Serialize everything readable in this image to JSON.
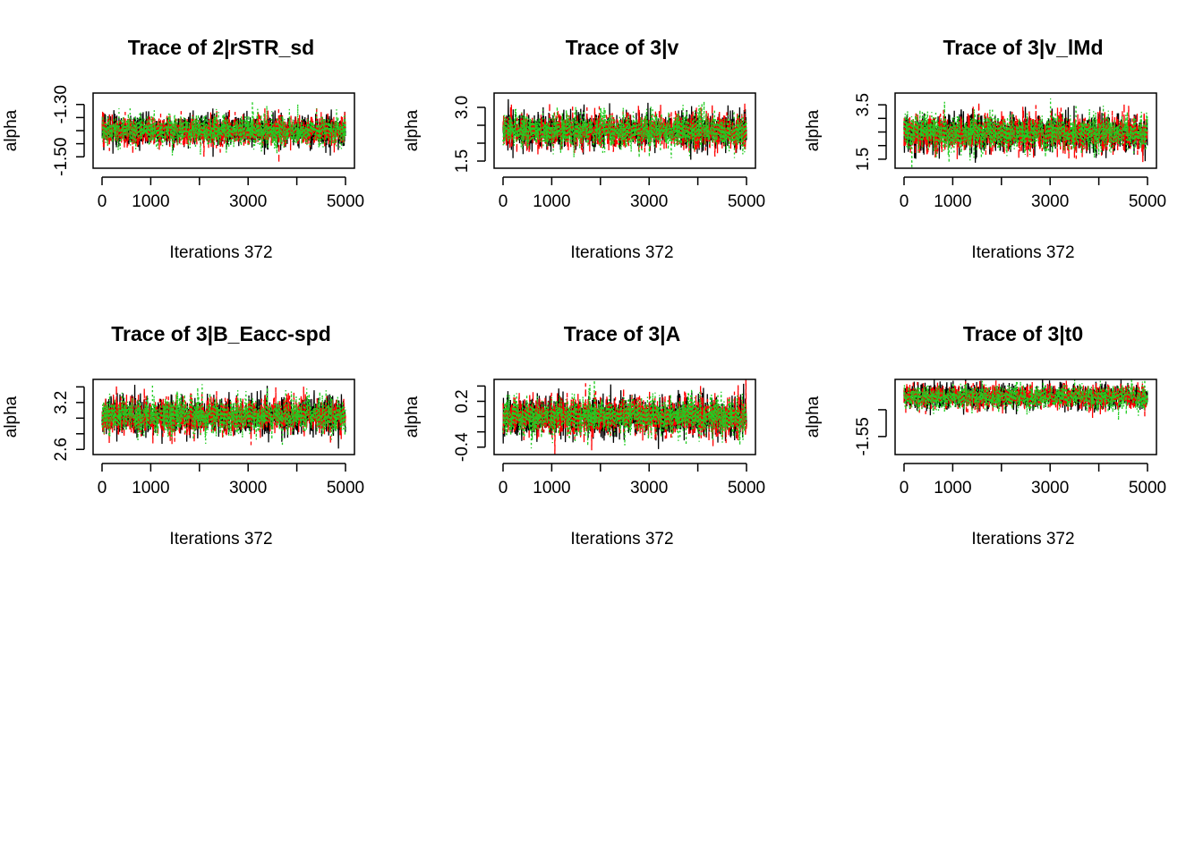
{
  "chart_data": [
    {
      "type": "line",
      "title": "Trace of 2|rSTR_sd",
      "xlabel": "Iterations 372",
      "ylabel": "alpha",
      "xlim": [
        0,
        5000
      ],
      "ylim": [
        -1.53,
        -1.27
      ],
      "x_ticks": [
        "0",
        "1000",
        "3000",
        "5000"
      ],
      "x_tick_values": [
        0,
        1000,
        2000,
        3000,
        4000,
        5000
      ],
      "y_ticks": [
        "-1.50",
        "-1.30"
      ],
      "y_tick_values": [
        -1.5,
        -1.45,
        -1.4,
        -1.35,
        -1.3
      ],
      "n_iterations": 5000,
      "series": [
        {
          "color": "#000000",
          "dash": "solid",
          "mean": -1.4,
          "sd": 0.03
        },
        {
          "color": "#ff0000",
          "dash": "dashed",
          "mean": -1.4,
          "sd": 0.03
        },
        {
          "color": "#22cc22",
          "dash": "dotted",
          "mean": -1.4,
          "sd": 0.03
        }
      ]
    },
    {
      "type": "line",
      "title": "Trace of 3|v",
      "xlabel": "Iterations 372",
      "ylabel": "alpha",
      "xlim": [
        0,
        5000
      ],
      "ylim": [
        1.4,
        3.3
      ],
      "x_ticks": [
        "0",
        "1000",
        "3000",
        "5000"
      ],
      "x_tick_values": [
        0,
        1000,
        2000,
        3000,
        4000,
        5000
      ],
      "y_ticks": [
        "1.5",
        "3.0"
      ],
      "y_tick_values": [
        1.5,
        2.0,
        2.5,
        3.0
      ],
      "n_iterations": 5000,
      "series": [
        {
          "color": "#000000",
          "dash": "solid",
          "mean": 2.35,
          "sd": 0.25
        },
        {
          "color": "#ff0000",
          "dash": "dashed",
          "mean": 2.35,
          "sd": 0.25
        },
        {
          "color": "#22cc22",
          "dash": "dotted",
          "mean": 2.35,
          "sd": 0.25
        }
      ]
    },
    {
      "type": "line",
      "title": "Trace of 3|v_lMd",
      "xlabel": "Iterations 372",
      "ylabel": "alpha",
      "xlim": [
        0,
        5000
      ],
      "ylim": [
        1.3,
        3.8
      ],
      "x_ticks": [
        "0",
        "1000",
        "3000",
        "5000"
      ],
      "x_tick_values": [
        0,
        1000,
        2000,
        3000,
        4000,
        5000
      ],
      "y_ticks": [
        "1.5",
        "3.5"
      ],
      "y_tick_values": [
        1.5,
        2.0,
        2.5,
        3.0,
        3.5
      ],
      "n_iterations": 5000,
      "series": [
        {
          "color": "#000000",
          "dash": "solid",
          "mean": 2.45,
          "sd": 0.35
        },
        {
          "color": "#ff0000",
          "dash": "dashed",
          "mean": 2.45,
          "sd": 0.35
        },
        {
          "color": "#22cc22",
          "dash": "dotted",
          "mean": 2.45,
          "sd": 0.35
        }
      ]
    },
    {
      "type": "line",
      "title": "Trace of 3|B_Eacc-spd",
      "xlabel": "Iterations 372",
      "ylabel": "alpha",
      "xlim": [
        0,
        5000
      ],
      "ylim": [
        2.58,
        3.45
      ],
      "x_ticks": [
        "0",
        "1000",
        "3000",
        "5000"
      ],
      "x_tick_values": [
        0,
        1000,
        2000,
        3000,
        4000,
        5000
      ],
      "y_ticks": [
        "2.6",
        "3.2"
      ],
      "y_tick_values": [
        2.6,
        2.8,
        3.0,
        3.2,
        3.4
      ],
      "n_iterations": 5000,
      "series": [
        {
          "color": "#000000",
          "dash": "solid",
          "mean": 3.03,
          "sd": 0.12
        },
        {
          "color": "#ff0000",
          "dash": "dashed",
          "mean": 3.03,
          "sd": 0.12
        },
        {
          "color": "#22cc22",
          "dash": "dotted",
          "mean": 3.03,
          "sd": 0.12
        }
      ]
    },
    {
      "type": "line",
      "title": "Trace of 3|A",
      "xlabel": "Iterations 372",
      "ylabel": "alpha",
      "xlim": [
        0,
        5000
      ],
      "ylim": [
        -0.45,
        0.44
      ],
      "x_ticks": [
        "0",
        "1000",
        "3000",
        "5000"
      ],
      "x_tick_values": [
        0,
        1000,
        2000,
        3000,
        4000,
        5000
      ],
      "y_ticks": [
        "-0.4",
        "0.2"
      ],
      "y_tick_values": [
        -0.4,
        -0.2,
        0.0,
        0.2,
        0.4
      ],
      "n_iterations": 5000,
      "series": [
        {
          "color": "#000000",
          "dash": "solid",
          "mean": 0.0,
          "sd": 0.13
        },
        {
          "color": "#ff0000",
          "dash": "dashed",
          "mean": 0.0,
          "sd": 0.13
        },
        {
          "color": "#22cc22",
          "dash": "dotted",
          "mean": 0.0,
          "sd": 0.13
        }
      ]
    },
    {
      "type": "line",
      "title": "Trace of 3|t0",
      "xlabel": "Iterations 372",
      "ylabel": "alpha",
      "xlim": [
        0,
        5000
      ],
      "ylim": [
        -1.577,
        -1.45
      ],
      "x_ticks": [
        "0",
        "1000",
        "3000",
        "5000"
      ],
      "x_tick_values": [
        0,
        1000,
        2000,
        3000,
        4000,
        5000
      ],
      "y_ticks": [
        "-1.55"
      ],
      "y_tick_values": [
        -1.55,
        -1.5
      ],
      "n_iterations": 5000,
      "series": [
        {
          "color": "#000000",
          "dash": "solid",
          "mean": -1.476,
          "sd": 0.012
        },
        {
          "color": "#ff0000",
          "dash": "dashed",
          "mean": -1.476,
          "sd": 0.012
        },
        {
          "color": "#22cc22",
          "dash": "dotted",
          "mean": -1.476,
          "sd": 0.012
        }
      ]
    }
  ]
}
